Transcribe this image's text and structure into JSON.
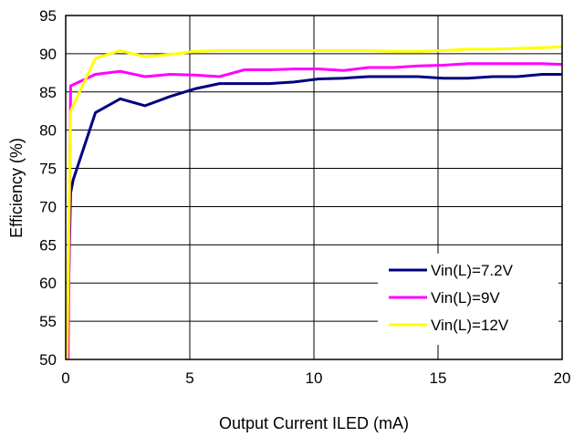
{
  "chart_data": {
    "type": "line",
    "xlabel": "Output Current ILED (mA)",
    "ylabel": "Efficiency (%)",
    "xlim": [
      0,
      20
    ],
    "ylim": [
      50,
      95
    ],
    "xticks": [
      0,
      5,
      10,
      15,
      20
    ],
    "yticks": [
      50,
      55,
      60,
      65,
      70,
      75,
      80,
      85,
      90,
      95
    ],
    "grid": true,
    "legend_position": "bottom-right",
    "series": [
      {
        "name": "Vin(L)=7.2V",
        "color": "#000080",
        "x": [
          0.1,
          0.2,
          0.3,
          1.2,
          2.2,
          3.2,
          4.2,
          5.2,
          6.2,
          7.2,
          8.2,
          9.2,
          10.2,
          11.2,
          12.2,
          13.2,
          14.2,
          15.2,
          16.2,
          17.2,
          18.2,
          19.2,
          20
        ],
        "y": [
          57.0,
          71.8,
          73.5,
          82.3,
          84.1,
          83.2,
          84.4,
          85.4,
          86.1,
          86.1,
          86.1,
          86.3,
          86.7,
          86.8,
          87.0,
          87.0,
          87.0,
          86.8,
          86.8,
          87.0,
          87.0,
          87.3,
          87.3
        ]
      },
      {
        "name": "Vin(L)=9V",
        "color": "#FF00FF",
        "x": [
          0.1,
          0.2,
          1.2,
          2.2,
          3.2,
          4.2,
          5.2,
          6.2,
          7.2,
          8.2,
          9.2,
          10.2,
          11.2,
          12.2,
          13.2,
          14.2,
          15.2,
          16.2,
          17.2,
          18.2,
          19.2,
          20
        ],
        "y": [
          50.0,
          85.8,
          87.3,
          87.7,
          87.0,
          87.3,
          87.2,
          87.0,
          87.9,
          87.9,
          88.0,
          88.0,
          87.8,
          88.2,
          88.2,
          88.4,
          88.5,
          88.7,
          88.7,
          88.7,
          88.7,
          88.6
        ]
      },
      {
        "name": "Vin(L)=12V",
        "color": "#FFFF00",
        "x": [
          0.05,
          0.2,
          1.2,
          2.2,
          3.2,
          4.2,
          5.2,
          6.2,
          7.2,
          8.2,
          9.2,
          10.2,
          11.2,
          12.2,
          13.2,
          14.2,
          15.2,
          16.2,
          17.2,
          18.2,
          19.2,
          20
        ],
        "y": [
          50.0,
          82.5,
          89.4,
          90.4,
          89.6,
          89.9,
          90.3,
          90.4,
          90.4,
          90.4,
          90.4,
          90.4,
          90.4,
          90.4,
          90.3,
          90.3,
          90.4,
          90.6,
          90.6,
          90.7,
          90.8,
          90.9
        ]
      }
    ]
  }
}
